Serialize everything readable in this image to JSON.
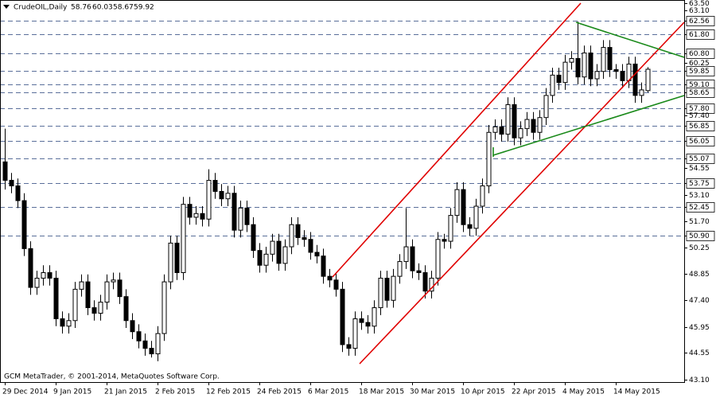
{
  "chart_data": {
    "type": "candlestick",
    "title": "CrudeOIL,Daily",
    "copyright": "GCM MetaTrader, © 2001-2014, MetaQuotes Software Corp.",
    "categories": [
      "29 Dec 2014",
      null,
      null,
      null,
      null,
      null,
      null,
      null,
      "9 Jan 2015",
      null,
      null,
      null,
      null,
      null,
      null,
      null,
      "21 Jan 2015",
      null,
      null,
      null,
      null,
      null,
      null,
      null,
      "2 Feb 2015",
      null,
      null,
      null,
      null,
      null,
      null,
      null,
      "12 Feb 2015",
      null,
      null,
      null,
      null,
      null,
      null,
      null,
      "24 Feb 2015",
      null,
      null,
      null,
      null,
      null,
      null,
      null,
      "6 Mar 2015",
      null,
      null,
      null,
      null,
      null,
      null,
      null,
      "18 Mar 2015",
      null,
      null,
      null,
      null,
      null,
      null,
      null,
      "30 Mar 2015",
      null,
      null,
      null,
      null,
      null,
      null,
      null,
      "10 Apr 2015",
      null,
      null,
      null,
      null,
      null,
      null,
      null,
      "22 Apr 2015",
      null,
      null,
      null,
      null,
      null,
      null,
      null,
      "4 May 2015",
      null,
      null,
      null,
      null,
      null,
      null,
      null,
      "14 May 2015",
      null,
      null,
      null,
      null,
      null
    ],
    "open": [
      54.9,
      53.9,
      53.6,
      52.8,
      50.2,
      48.1,
      48.6,
      48.9,
      48.6,
      46.4,
      46.0,
      46.3,
      48.0,
      48.4,
      47.0,
      46.7,
      47.3,
      48.4,
      48.5,
      47.6,
      46.3,
      45.7,
      45.2,
      44.8,
      44.5,
      45.6,
      48.4,
      50.5,
      48.9,
      52.6,
      51.9,
      52.1,
      51.8,
      53.9,
      53.3,
      52.9,
      53.2,
      51.2,
      52.4,
      51.5,
      50.1,
      49.3,
      49.9,
      50.6,
      49.4,
      50.3,
      51.5,
      50.8,
      50.7,
      50.0,
      49.8,
      48.7,
      48.5,
      48.0,
      45.0,
      44.8,
      46.4,
      46.2,
      46.0,
      47.0,
      48.6,
      47.4,
      48.7,
      49.5,
      50.3,
      49.0,
      48.9,
      47.9,
      48.6,
      50.7,
      50.6,
      52.0,
      53.4,
      51.5,
      51.3,
      52.5,
      53.6,
      56.5,
      56.8,
      56.4,
      58.0,
      56.2,
      56.7,
      57.2,
      56.5,
      57.3,
      58.5,
      59.6,
      59.2,
      60.3,
      60.5,
      59.5,
      60.8,
      59.4,
      59.8,
      61.1,
      59.9,
      59.8,
      59.3,
      60.2,
      58.5,
      58.76
    ],
    "high": [
      56.7,
      54.3,
      54.0,
      53.2,
      50.6,
      49.0,
      49.3,
      49.3,
      49.0,
      46.8,
      46.7,
      48.4,
      48.8,
      48.8,
      47.4,
      47.7,
      48.8,
      48.9,
      48.9,
      48.0,
      46.7,
      46.1,
      45.6,
      45.2,
      46.0,
      48.8,
      50.9,
      50.9,
      53.0,
      53.0,
      52.5,
      52.5,
      54.5,
      54.3,
      53.7,
      53.6,
      53.6,
      52.8,
      52.8,
      51.9,
      50.5,
      50.3,
      51.0,
      51.0,
      50.7,
      51.9,
      51.9,
      51.2,
      51.1,
      50.4,
      50.2,
      49.1,
      48.9,
      48.4,
      45.4,
      46.8,
      46.8,
      46.6,
      47.4,
      49.0,
      49.0,
      49.1,
      49.9,
      52.4,
      50.7,
      49.4,
      49.3,
      49.0,
      51.1,
      51.0,
      52.4,
      53.8,
      53.8,
      51.9,
      52.9,
      54.0,
      56.9,
      57.2,
      57.2,
      58.4,
      58.4,
      57.1,
      57.6,
      57.6,
      57.7,
      58.9,
      60.0,
      60.0,
      60.7,
      60.9,
      62.5,
      61.2,
      61.2,
      60.2,
      61.5,
      61.5,
      60.2,
      60.2,
      60.6,
      60.6,
      59.2,
      60.03
    ],
    "low": [
      53.4,
      53.2,
      52.4,
      49.8,
      47.7,
      47.7,
      48.2,
      48.2,
      46.0,
      45.6,
      45.6,
      45.9,
      47.6,
      46.6,
      46.3,
      46.3,
      46.9,
      48.0,
      47.2,
      45.9,
      45.3,
      44.8,
      44.4,
      44.3,
      44.1,
      45.2,
      48.0,
      48.5,
      48.5,
      51.5,
      51.5,
      51.4,
      51.4,
      52.9,
      52.5,
      52.5,
      50.8,
      50.8,
      51.1,
      49.7,
      48.9,
      48.9,
      49.5,
      49.0,
      49.0,
      49.9,
      50.4,
      50.3,
      49.6,
      49.4,
      48.3,
      48.1,
      47.6,
      44.6,
      44.4,
      44.4,
      45.8,
      45.6,
      45.6,
      46.6,
      47.0,
      47.0,
      48.3,
      49.1,
      48.6,
      48.5,
      47.5,
      47.5,
      48.2,
      50.2,
      50.2,
      51.6,
      51.1,
      50.9,
      50.9,
      52.1,
      53.2,
      56.1,
      56.0,
      56.0,
      55.8,
      55.8,
      56.3,
      56.1,
      56.1,
      56.9,
      58.1,
      58.8,
      58.8,
      59.9,
      59.1,
      59.1,
      59.0,
      59.0,
      59.4,
      59.5,
      59.4,
      58.9,
      58.9,
      58.1,
      58.1,
      58.67
    ],
    "close": [
      53.9,
      53.6,
      52.8,
      50.2,
      48.1,
      48.6,
      48.9,
      48.6,
      46.4,
      46.0,
      46.3,
      48.0,
      48.4,
      47.0,
      46.7,
      47.3,
      48.4,
      48.5,
      47.6,
      46.3,
      45.7,
      45.2,
      44.8,
      44.5,
      45.6,
      48.4,
      50.5,
      48.9,
      52.6,
      51.9,
      52.1,
      51.8,
      53.9,
      53.3,
      52.9,
      53.2,
      51.2,
      52.4,
      51.5,
      50.1,
      49.3,
      49.9,
      50.6,
      49.4,
      50.3,
      51.5,
      50.8,
      50.7,
      50.0,
      49.8,
      48.7,
      48.5,
      48.0,
      45.0,
      44.8,
      46.4,
      46.2,
      46.0,
      47.0,
      48.6,
      47.4,
      48.7,
      49.5,
      50.3,
      49.0,
      48.9,
      47.9,
      48.6,
      50.7,
      50.6,
      52.0,
      53.4,
      51.5,
      51.3,
      52.5,
      53.6,
      56.5,
      56.8,
      56.4,
      58.0,
      56.2,
      56.7,
      57.2,
      56.5,
      57.3,
      58.5,
      59.6,
      59.2,
      60.3,
      60.5,
      59.5,
      60.8,
      59.4,
      59.8,
      61.1,
      59.9,
      59.8,
      59.3,
      60.2,
      58.5,
      58.8,
      59.92
    ],
    "ylim": [
      42.97,
      63.67
    ],
    "yticks": [
      {
        "value": 63.5,
        "label": "63.50"
      },
      {
        "value": 63.1,
        "label": "63.10"
      },
      62.56,
      {
        "value": 61.8,
        "label": "61.80"
      },
      {
        "value": 60.8,
        "label": "60.80"
      },
      60.25,
      59.85,
      {
        "value": 59.1,
        "label": "59.10"
      },
      58.65,
      {
        "value": 57.8,
        "label": "57.80"
      },
      {
        "value": 57.4,
        "label": "57.40"
      },
      56.85,
      56.05,
      55.07,
      54.55,
      53.75,
      {
        "value": 53.1,
        "label": "53.10"
      },
      52.45,
      {
        "value": 51.7,
        "label": "51.70"
      },
      {
        "value": 50.9,
        "label": "50.90"
      },
      50.25,
      48.85,
      {
        "value": 47.4,
        "label": "47.40"
      },
      45.95,
      44.55,
      {
        "value": 43.1,
        "label": "43.10"
      }
    ],
    "levels": [
      62.56,
      61.8,
      60.8,
      59.85,
      59.1,
      58.65,
      57.8,
      56.85,
      56.05,
      55.07,
      53.75,
      52.45,
      50.9
    ],
    "up_color": "#ffffff",
    "down_color": "#000000",
    "level_color": "#5a6f9a"
  }
}
